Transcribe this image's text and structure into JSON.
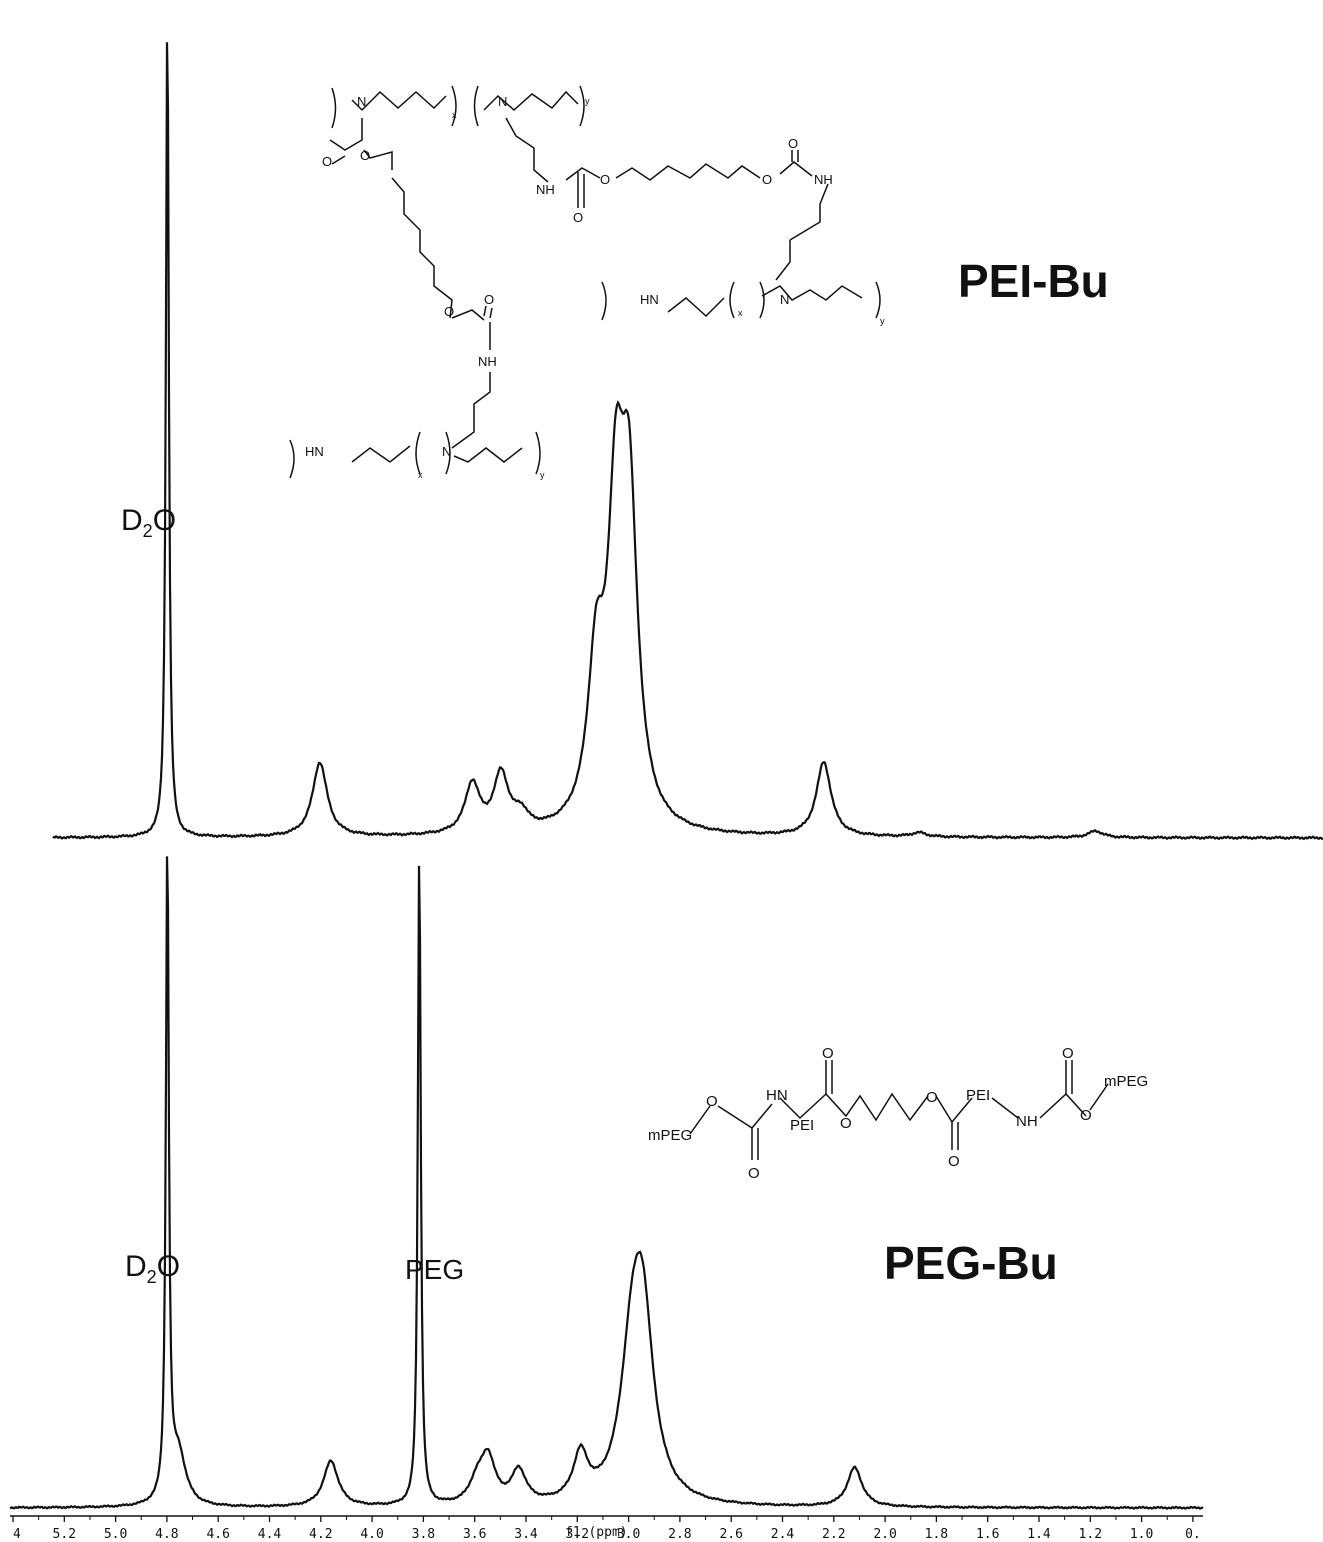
{
  "chart_data": [
    {
      "type": "line",
      "name_label": "PEI-Bu",
      "xlabel": "f1 (ppm)",
      "xlim": [
        5.4,
        0.0
      ],
      "ticks": [
        "4",
        "5.2",
        "5.0",
        "4.8",
        "4.6",
        "4.4",
        "4.2",
        "4.0",
        "3.8",
        "3.6",
        "3.4",
        "3.2",
        "3.0",
        "2.8",
        "2.6",
        "2.4",
        "2.2",
        "2.0",
        "1.8",
        "1.6",
        "1.4",
        "1.2",
        "1.0",
        "0."
      ],
      "annotations": [
        {
          "text": "D",
          "sub": "2",
          "tail": "O",
          "ppm": 4.65
        }
      ],
      "peaks": [
        {
          "ppm": 4.65,
          "height": 1.0
        },
        {
          "ppm": 3.96,
          "height": 0.09
        },
        {
          "ppm": 3.27,
          "height": 0.06
        },
        {
          "ppm": 3.14,
          "height": 0.07
        },
        {
          "ppm": 3.05,
          "height": 0.02
        },
        {
          "ppm": 2.71,
          "height": 0.18
        },
        {
          "ppm": 2.62,
          "height": 0.35
        },
        {
          "ppm": 2.56,
          "height": 0.36
        },
        {
          "ppm": 1.68,
          "height": 0.09
        },
        {
          "ppm": 1.25,
          "height": 0.005
        },
        {
          "ppm": 0.45,
          "height": 0.008
        }
      ]
    },
    {
      "type": "line",
      "name_label": "PEG-Bu",
      "xlabel": "f1 (ppm)",
      "xlim": [
        5.4,
        0.0
      ],
      "annotations": [
        {
          "text": "D",
          "sub": "2",
          "tail": "O",
          "ppm": 4.65
        },
        {
          "text": "PEG",
          "ppm": 3.51
        }
      ],
      "peaks": [
        {
          "ppm": 4.65,
          "height": 1.0
        },
        {
          "ppm": 4.6,
          "height": 0.08
        },
        {
          "ppm": 3.91,
          "height": 0.07
        },
        {
          "ppm": 3.51,
          "height": 1.0
        },
        {
          "ppm": 3.25,
          "height": 0.03
        },
        {
          "ppm": 3.2,
          "height": 0.07
        },
        {
          "ppm": 3.06,
          "height": 0.05
        },
        {
          "ppm": 2.78,
          "height": 0.07
        },
        {
          "ppm": 2.55,
          "height": 0.18
        },
        {
          "ppm": 2.5,
          "height": 0.27
        },
        {
          "ppm": 1.54,
          "height": 0.06
        }
      ]
    }
  ],
  "structures": {
    "peibu_top": [
      "N",
      "x",
      "N",
      "y",
      "O",
      "O",
      "NH",
      "O",
      "O",
      "O",
      "NH"
    ],
    "peibu_left": [
      "O",
      "O",
      "NH",
      "HN",
      "x",
      "N",
      "y"
    ],
    "peibu_right": [
      "HN",
      "x",
      "N",
      "y"
    ],
    "pegbu": [
      "mPEG",
      "O",
      "O",
      "HN",
      "PEI",
      "O",
      "O",
      "O",
      "O",
      "PEI",
      "NH",
      "O",
      "O",
      "mPEG"
    ]
  }
}
